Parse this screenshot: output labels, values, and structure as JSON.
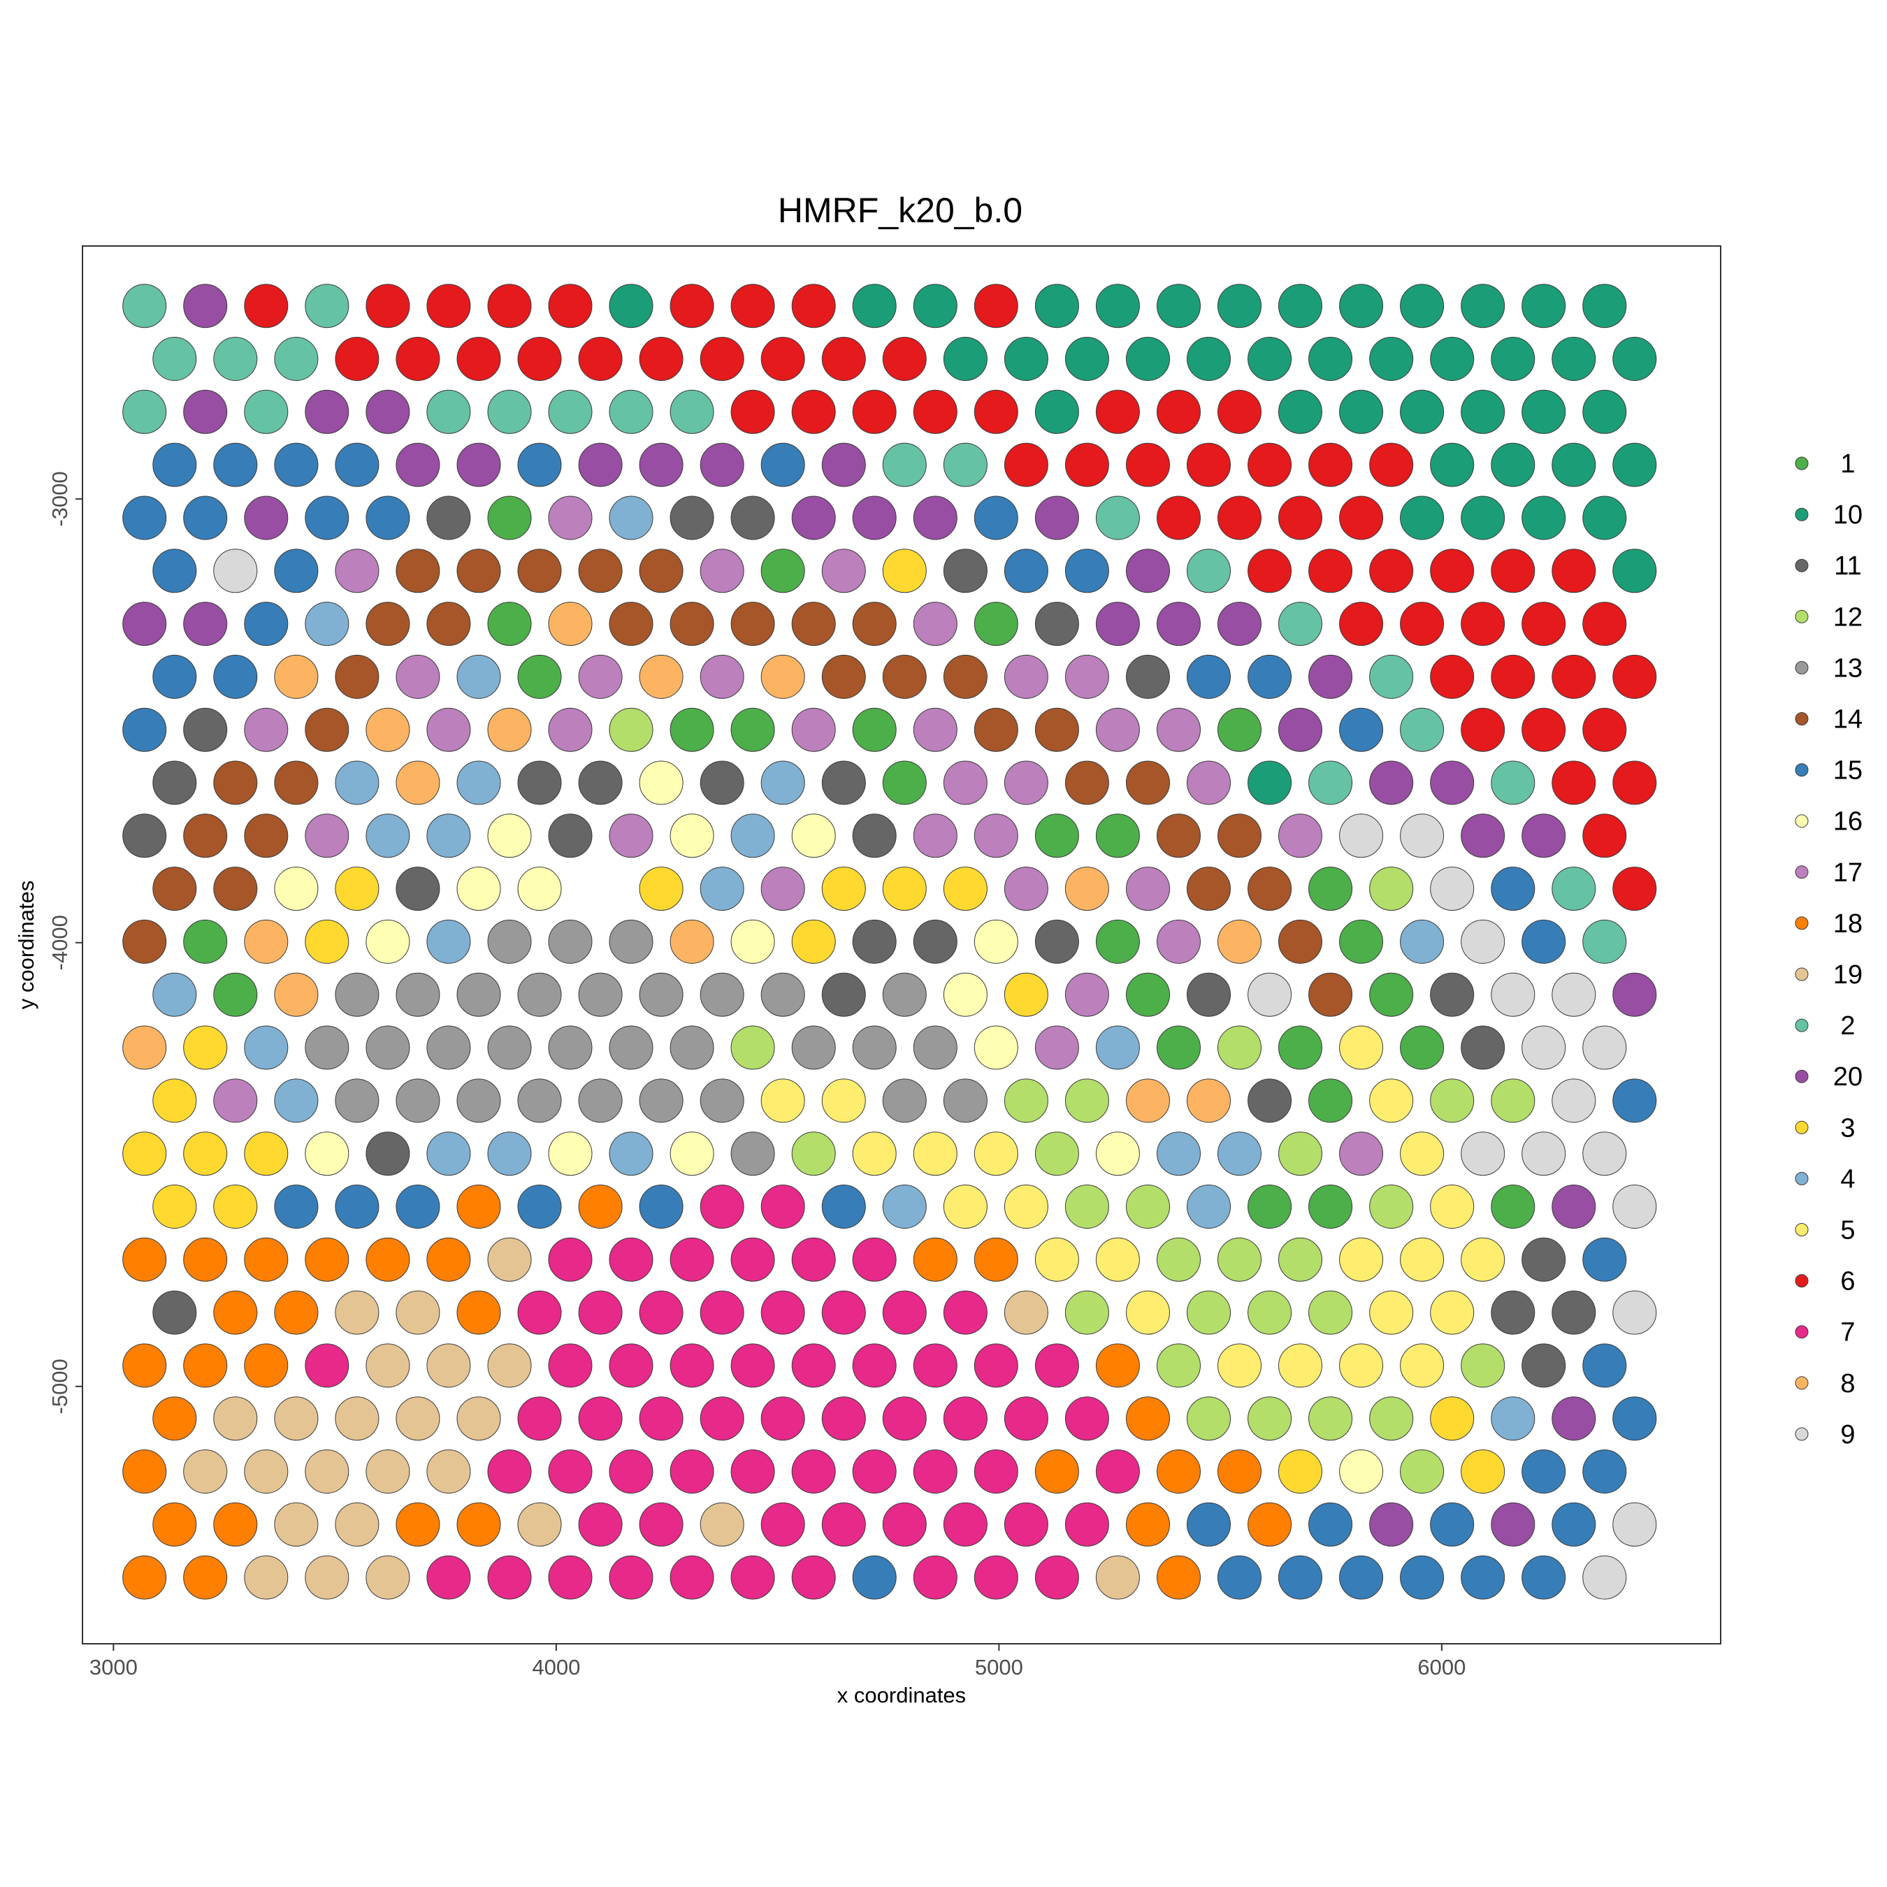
{
  "chart_data": {
    "type": "scatter",
    "title": "HMRF_k20_b.0",
    "xlabel": "x coordinates",
    "ylabel": "y coordinates",
    "xlim": [
      2930,
      6630
    ],
    "ylim": [
      -5580,
      -2430
    ],
    "x_ticks": [
      3000,
      4000,
      5000,
      6000
    ],
    "x_tick_labels": [
      "3000",
      "4000",
      "5000",
      "6000"
    ],
    "y_ticks": [
      -3000,
      -4000,
      -5000
    ],
    "y_tick_labels": [
      "-3000",
      "-4000",
      "-5000"
    ],
    "legend_position": "right",
    "legend": [
      "1",
      "10",
      "11",
      "12",
      "13",
      "14",
      "15",
      "16",
      "17",
      "18",
      "19",
      "2",
      "20",
      "3",
      "4",
      "5",
      "6",
      "7",
      "8",
      "9"
    ],
    "colors": {
      "1": "#4DAF4A",
      "10": "#1B9E77",
      "11": "#666666",
      "12": "#B3DE69",
      "13": "#999999",
      "14": "#A65628",
      "15": "#377EB8",
      "16": "#FFFFB3",
      "17": "#BC80BD",
      "18": "#FF7F00",
      "19": "#E5C494",
      "2": "#66C2A5",
      "20": "#984EA3",
      "3": "#FFD92F",
      "4": "#80B1D3",
      "5": "#FFED6F",
      "6": "#E41A1C",
      "7": "#E7298A",
      "8": "#FDB462",
      "9": "#D9D9D9"
    },
    "grid": {
      "row_y_start": -2565,
      "row_y_step": -119.4,
      "even_row_x_start": 3070,
      "odd_row_x_start": 3138,
      "col_x_step": 137.4
    },
    "rows": [
      "2 20 6 2 6 6 6 6 10 6 6 6 10 10 6 10 10 10 10 10 10 10 10 10 10",
      "2 2 2 6 6 6 6 6 6 6 6 6 6 10 10 10 10 10 10 10 10 10 10 10 10",
      "2 20 2 20 20 2 2 2 2 2 6 6 6 6 6 10 6 6 6 10 10 10 10 10 10",
      "15 15 15 15 20 20 15 20 20 20 15 20 2 2 6 6 6 6 6 6 6 10 10 10 10",
      "15 15 20 15 15 11 1 17 4 11 11 20 20 20 15 20 2 6 6 6 6 10 10 10 10",
      "15 9 15 17 14 14 14 14 14 17 1 17 3 11 15 15 20 2 6 6 6 6 6 6 10",
      "20 20 15 4 14 14 1 8 14 14 14 14 14 17 1 11 20 20 20 2 6 6 6 6 6",
      "15 15 8 14 17 4 1 17 8 17 8 14 14 14 17 17 11 15 15 20 2 6 6 6 6",
      "15 11 17 14 8 17 8 17 12 1 1 17 1 17 14 14 17 17 1 20 15 2 6 6 6",
      "11 14 14 4 8 4 11 11 16 11 4 11 1 17 17 14 14 17 10 2 20 20 2 6 6",
      "11 14 14 17 4 4 16 11 17 16 4 16 11 17 17 1 1 14 14 17 9 9 20 20 6",
      "14 14 16 3 11 16 16 _ 3 4 17 3 3 3 17 8 17 14 14 1 12 9 15 2 6",
      "14 1 8 3 16 4 13 13 13 8 16 3 11 11 16 11 1 17 8 14 1 4 9 15 2",
      "4 1 8 13 13 13 13 13 13 13 13 11 13 16 3 17 1 11 9 14 1 11 9 9 20",
      "8 3 4 13 13 13 13 13 13 13 12 13 13 13 16 17 4 1 12 1 5 1 11 9 9",
      "3 17 4 13 13 13 13 13 13 13 5 5 13 13 12 12 8 8 11 1 5 12 12 9 15",
      "3 3 3 16 11 4 4 16 4 16 13 12 5 5 5 12 16 4 4 12 17 5 9 9 9",
      "3 3 15 15 15 18 15 18 15 7 7 15 4 5 5 12 12 4 1 1 12 5 1 20 9",
      "18 18 18 18 18 18 19 7 7 7 7 7 7 18 18 5 5 12 12 12 5 5 5 11 15",
      "11 18 18 19 19 18 7 7 7 7 7 7 7 7 19 12 5 12 12 12 5 5 11 11 9",
      "18 18 18 7 19 19 19 7 7 7 7 7 7 7 7 7 18 12 5 5 5 5 12 11 15",
      "18 19 19 19 19 19 7 7 7 7 7 7 7 7 7 7 18 12 12 12 12 3 4 20 15",
      "18 19 19 19 19 19 7 7 7 7 7 7 7 7 7 18 7 18 18 3 16 12 3 15 15",
      "18 18 19 19 18 18 19 7 7 19 7 7 7 7 7 7 18 15 18 15 20 15 20 15 9",
      "18 18 19 19 19 7 7 7 7 7 7 7 15 7 7 7 19 18 15 15 15 15 15 15 9"
    ]
  }
}
